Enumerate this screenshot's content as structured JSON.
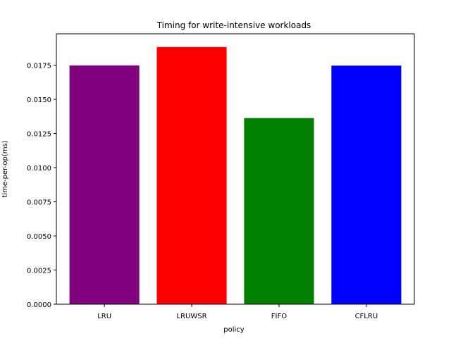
{
  "chart_data": {
    "type": "bar",
    "title": "Timing for write-intensive workloads",
    "xlabel": "policy",
    "ylabel": "time-per-op(ms)",
    "categories": [
      "LRU",
      "LRUWSR",
      "FIFO",
      "CFLRU"
    ],
    "values": [
      0.01748,
      0.01883,
      0.01363,
      0.01747
    ],
    "colors": [
      "#800080",
      "#ff0000",
      "#008000",
      "#0000ff"
    ],
    "ylim": [
      0,
      0.0198
    ],
    "yticks": [
      0.0,
      0.0025,
      0.005,
      0.0075,
      0.01,
      0.0125,
      0.015,
      0.0175
    ],
    "ytick_labels": [
      "0.0000",
      "0.0025",
      "0.0050",
      "0.0075",
      "0.0100",
      "0.0125",
      "0.0150",
      "0.0175"
    ],
    "grid": false,
    "legend": "none"
  }
}
